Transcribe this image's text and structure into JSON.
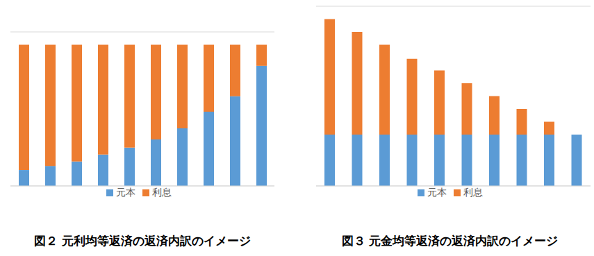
{
  "chart_data": [
    {
      "type": "bar",
      "stacked": true,
      "title": "図２ 元利均等返済の返済内訳のイメージ",
      "categories": [
        null,
        null,
        null,
        null,
        null,
        null,
        null,
        null,
        null,
        null
      ],
      "series": [
        {
          "name": "元本",
          "color": "#5b9bd5",
          "values": [
            0.62,
            0.78,
            0.95,
            1.22,
            1.49,
            1.81,
            2.24,
            2.89,
            3.49,
            4.68
          ]
        },
        {
          "name": "利息",
          "color": "#ed7d31",
          "values": [
            4.88,
            4.72,
            4.55,
            4.28,
            4.01,
            3.69,
            3.26,
            2.61,
            2.01,
            0.82
          ]
        }
      ],
      "ylim": [
        0,
        6
      ],
      "yticks": [
        0,
        1,
        2,
        3,
        4,
        5,
        6
      ],
      "grid": true,
      "tick_labels": false,
      "legend": "bottom"
    },
    {
      "type": "bar",
      "stacked": true,
      "title": "図３ 元金均等返済の返済内訳のイメージ",
      "categories": [
        null,
        null,
        null,
        null,
        null,
        null,
        null,
        null,
        null,
        null
      ],
      "series": [
        {
          "name": "元本",
          "color": "#5b9bd5",
          "values": [
            2,
            2,
            2,
            2,
            2,
            2,
            2,
            2,
            2,
            2
          ]
        },
        {
          "name": "利息",
          "color": "#ed7d31",
          "values": [
            4.5,
            4.0,
            3.5,
            2.95,
            2.5,
            2.0,
            1.5,
            1.0,
            0.5,
            0
          ]
        }
      ],
      "ylim": [
        0,
        7
      ],
      "yticks": [
        0,
        1,
        2,
        3,
        4,
        5,
        6,
        7
      ],
      "grid": true,
      "tick_labels": false,
      "legend": "bottom"
    }
  ]
}
